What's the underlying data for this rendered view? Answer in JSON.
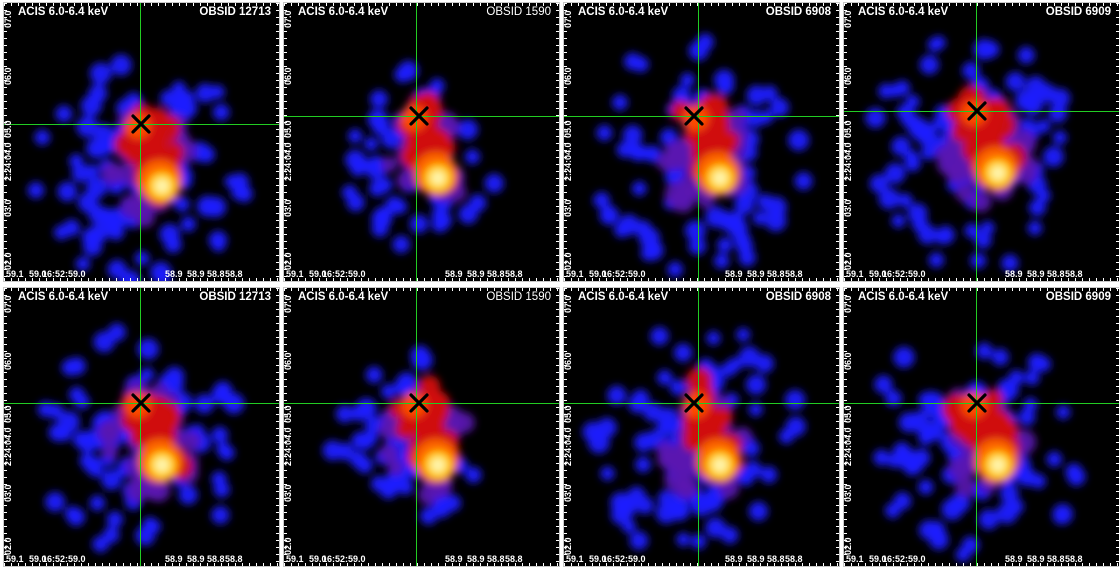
{
  "panels": [
    {
      "title": "ACIS 6.0-6.4 keV",
      "obsid": "OBSID 12713",
      "ylabels": [
        "07.0",
        "06.0",
        "05.0",
        "2:24:04.0",
        "03.0",
        "02.0"
      ],
      "xlabels": [
        "59.1",
        "59.0",
        "16:52:59.0",
        "58.9",
        "58.9",
        "58.8",
        "58.8"
      ]
    },
    {
      "title": "ACIS 6.0-6.4 keV",
      "obsid": "OBSID 1590",
      "ylabels": [
        "07.0",
        "06.0",
        "05.0",
        "2:24:04.0",
        "03.0",
        "02.0"
      ],
      "xlabels": [
        "59.1",
        "59.0",
        "16:52:59.0",
        "58.9",
        "58.9",
        "58.8",
        "58.8"
      ]
    },
    {
      "title": "ACIS 6.0-6.4 keV",
      "obsid": "OBSID 6908",
      "ylabels": [
        "07.0",
        "06.0",
        "05.0",
        "2:24:04.0",
        "03.0",
        "02.0"
      ],
      "xlabels": [
        "59.1",
        "59.0",
        "16:52:59.0",
        "58.9",
        "58.9",
        "58.8",
        "58.8"
      ]
    },
    {
      "title": "ACIS 6.0-6.4 keV",
      "obsid": "OBSID 6909",
      "ylabels": [
        "07.0",
        "06.0",
        "05.0",
        "2:24:04.0",
        "03.0",
        "02.0"
      ],
      "xlabels": [
        "59.1",
        "59.0",
        "16:52:59.0",
        "58.9",
        "58.9",
        "58.8",
        "58.8"
      ]
    },
    {
      "title": "ACIS 6.0-6.4 keV",
      "obsid": "OBSID 12713",
      "ylabels": [
        "07.0",
        "06.0",
        "05.0",
        "2:24:04.0",
        "03.0",
        "02.0"
      ],
      "xlabels": [
        "59.1",
        "59.0",
        "16:52:59.0",
        "58.9",
        "58.9",
        "58.8",
        "58.8"
      ]
    },
    {
      "title": "ACIS 6.0-6.4 keV",
      "obsid": "OBSID 1590",
      "ylabels": [
        "07.0",
        "06.0",
        "05.0",
        "2:24:04.0",
        "03.0",
        "02.0"
      ],
      "xlabels": [
        "59.1",
        "59.0",
        "16:52:59.0",
        "58.9",
        "58.9",
        "58.8",
        "58.8"
      ]
    },
    {
      "title": "ACIS 6.0-6.4 keV",
      "obsid": "OBSID 6908",
      "ylabels": [
        "07.0",
        "06.0",
        "05.0",
        "2:24:04.0",
        "03.0",
        "02.0"
      ],
      "xlabels": [
        "59.1",
        "59.0",
        "16:52:59.0",
        "58.9",
        "58.9",
        "58.8",
        "58.8"
      ]
    },
    {
      "title": "ACIS 6.0-6.4 keV",
      "obsid": "OBSID 6909",
      "ylabels": [
        "07.0",
        "06.0",
        "05.0",
        "2:24:04.0",
        "03.0",
        "02.0"
      ],
      "xlabels": [
        "59.1",
        "59.0",
        "16:52:59.0",
        "58.9",
        "58.9",
        "58.8",
        "58.8"
      ]
    }
  ],
  "colors": {
    "background": "#000000",
    "crosshair": "#22cc22",
    "marker": "#000000",
    "label": "#ffffff"
  }
}
